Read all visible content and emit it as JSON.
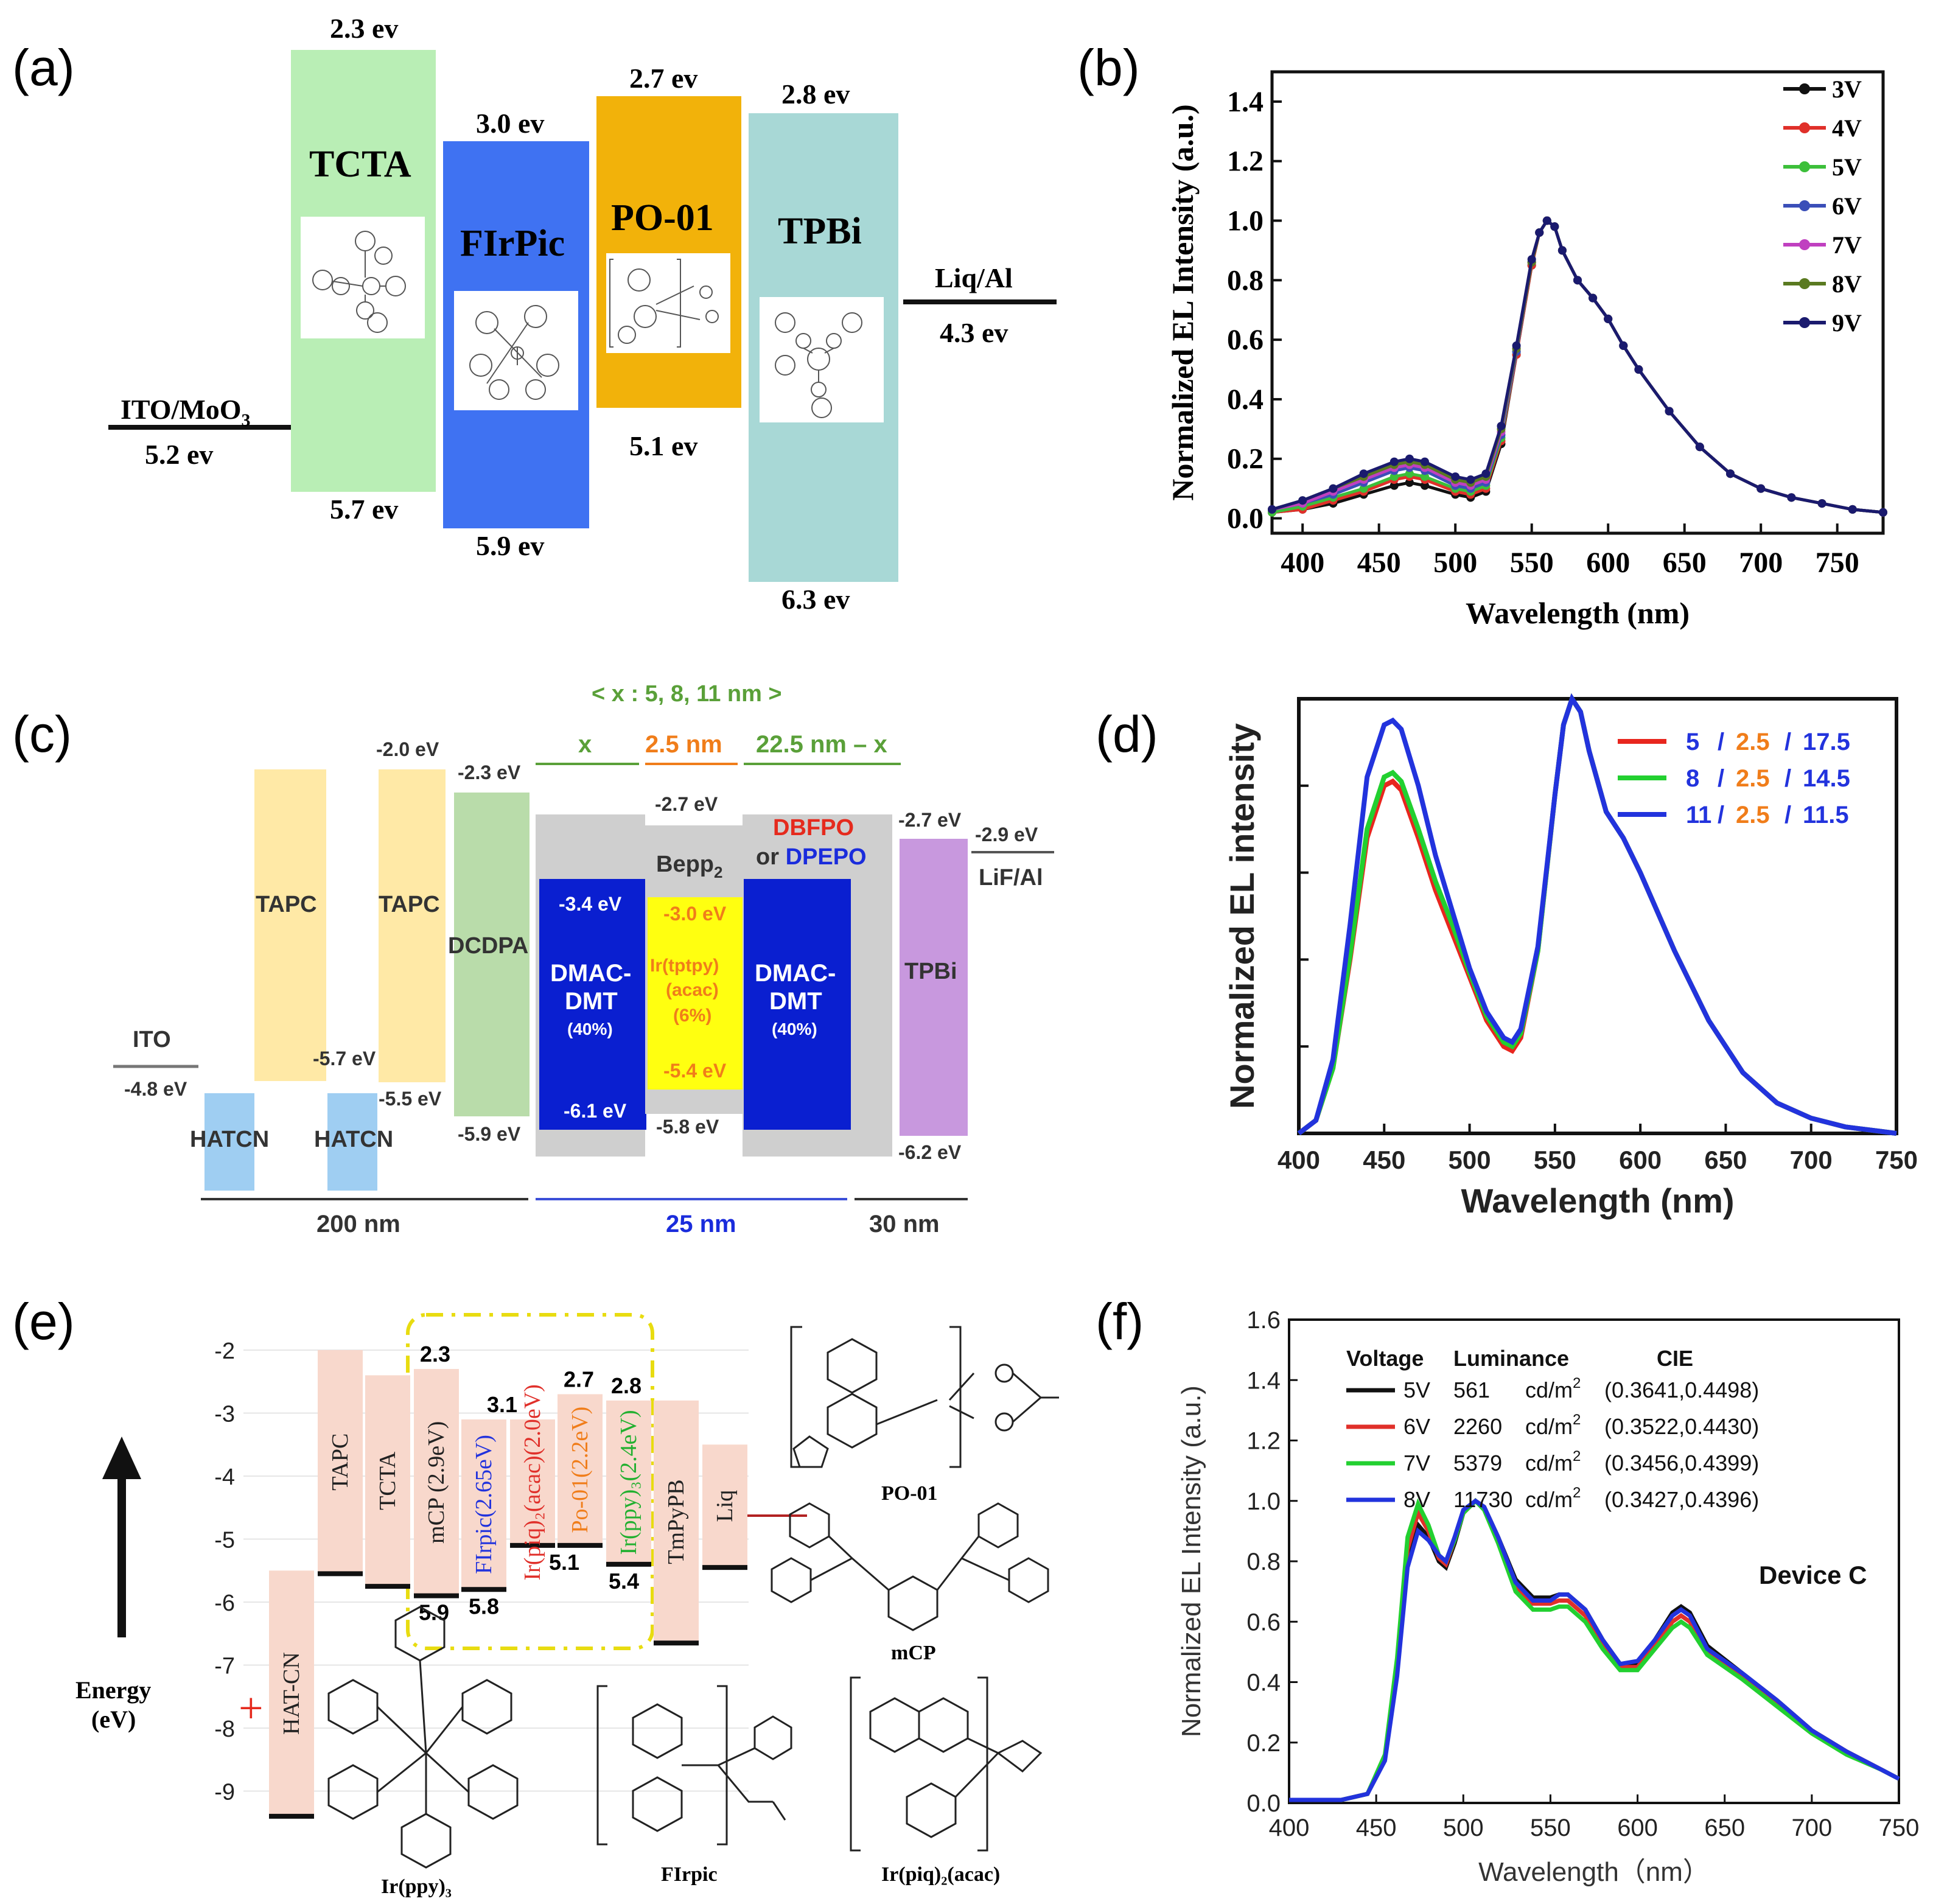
{
  "panels": {
    "a": "(a)",
    "b": "(b)",
    "c": "(c)",
    "d": "(d)",
    "e": "(e)",
    "f": "(f)"
  },
  "diagram_a": {
    "left_electrode": {
      "name": "ITO/MoO",
      "sub": "3",
      "level": "5.2 ev"
    },
    "right_electrode": {
      "name": "Liq/Al",
      "level": "4.3 ev"
    },
    "layers": [
      {
        "name": "TCTA",
        "lumo": "2.3 ev",
        "homo": "5.7 ev",
        "color": "#b9eeb5"
      },
      {
        "name": "FIrPic",
        "lumo": "3.0 ev",
        "homo": "5.9 ev",
        "color": "#3f72f2"
      },
      {
        "name": "PO-01",
        "lumo": "2.7 ev",
        "homo": "5.1 ev",
        "color": "#f2b20a"
      },
      {
        "name": "TPBi",
        "lumo": "2.8 ev",
        "homo": "6.3 ev",
        "color": "#a8d8d6"
      }
    ]
  },
  "diagram_c": {
    "top_note": "< x : 5, 8, 11 nm >",
    "seg_x": "x",
    "seg_25": "2.5 nm",
    "seg_225": "22.5 nm – x",
    "ito": "ITO",
    "ito_level": "-4.8 eV",
    "hatcn": "HATCN",
    "tapc": "TAPC",
    "tapc_level": "-2.0 eV",
    "tapc_homo": "-5.7 eV",
    "tapc2_homo": "-5.5 eV",
    "dcdpa": "DCDPA",
    "dcdpa_lumo": "-2.3 eV",
    "dcdpa_homo": "-5.9 eV",
    "dmac": [
      "DMAC-",
      "DMT",
      "(40%)"
    ],
    "dmac_lumo": "-3.4 eV",
    "dmac_homo": "-6.1 eV",
    "bepp": "Bepp",
    "bepp_sub": "2",
    "bepp_lumo": "-2.7 eV",
    "bepp_homo": "-5.8 eV",
    "ir": [
      "Ir(tptpy)",
      "(acac)",
      "(6%)"
    ],
    "ir_lumo": "-3.0 eV",
    "ir_homo": "-5.4 eV",
    "dbfpo": "DBFPO",
    "or_dpepo_or": "or ",
    "dpepo": "DPEPO",
    "tpbi": "TPBi",
    "tpbi_lumo": "-2.7 eV",
    "tpbi_homo": "-6.2 eV",
    "lif": "LiF/Al",
    "lif_level": "-2.9 eV",
    "thick_200": "200 nm",
    "thick_25": "25 nm",
    "thick_30": "30 nm"
  },
  "diagram_e": {
    "energy_label": [
      "Energy",
      "(eV)"
    ],
    "y_ticks": [
      "-2",
      "-3",
      "-4",
      "-5",
      "-6",
      "-7",
      "-8",
      "-9"
    ],
    "layers": [
      "HAT-CN",
      "TAPC",
      "TCTA",
      "mCP  (2.9eV)",
      "FIrpic(2.65eV)",
      "Ir(piq)₂(acac)(2.0eV)",
      "Po-01(2.2eV)",
      "Ir(ppy)₃(2.4eV)",
      "TmPyPB",
      "Liq"
    ],
    "levels": [
      "2.3",
      "3.1",
      "2.7",
      "2.8",
      "5.9",
      "5.8",
      "5.1",
      "5.4"
    ],
    "molecules": [
      "PO-01",
      "mCP",
      "Ir(ppy)₃",
      "FIrpic",
      "Ir(piq)₂(acac)"
    ]
  },
  "chart_data": [
    {
      "panel": "b",
      "type": "line",
      "title": "",
      "xlabel": "Wavelength (nm)",
      "ylabel": "Normalized EL Intensity (a.u.)",
      "xlim": [
        380,
        780
      ],
      "ylim": [
        -0.05,
        1.5
      ],
      "xticks": [
        400,
        450,
        500,
        550,
        600,
        650,
        700,
        750
      ],
      "yticks": [
        0.0,
        0.2,
        0.4,
        0.6,
        0.8,
        1.0,
        1.2,
        1.4
      ],
      "legend_position": "top-right",
      "x": [
        380,
        400,
        420,
        440,
        460,
        470,
        480,
        500,
        510,
        520,
        530,
        540,
        550,
        555,
        560,
        565,
        570,
        580,
        590,
        600,
        610,
        620,
        640,
        660,
        680,
        700,
        720,
        740,
        760,
        780
      ],
      "series": [
        {
          "name": "3V",
          "color": "#111111",
          "values": [
            0.02,
            0.03,
            0.05,
            0.08,
            0.11,
            0.12,
            0.11,
            0.08,
            0.07,
            0.09,
            0.25,
            0.55,
            0.85,
            0.96,
            1.0,
            0.98,
            0.9,
            0.8,
            0.74,
            0.67,
            0.58,
            0.5,
            0.36,
            0.24,
            0.15,
            0.1,
            0.07,
            0.05,
            0.03,
            0.02
          ]
        },
        {
          "name": "4V",
          "color": "#e0302a",
          "values": [
            0.02,
            0.03,
            0.06,
            0.09,
            0.13,
            0.14,
            0.13,
            0.09,
            0.08,
            0.1,
            0.26,
            0.55,
            0.85,
            0.96,
            1.0,
            0.98,
            0.9,
            0.8,
            0.74,
            0.67,
            0.58,
            0.5,
            0.36,
            0.24,
            0.15,
            0.1,
            0.07,
            0.05,
            0.03,
            0.02
          ]
        },
        {
          "name": "5V",
          "color": "#3cbf3a",
          "values": [
            0.02,
            0.04,
            0.07,
            0.1,
            0.14,
            0.15,
            0.14,
            0.1,
            0.09,
            0.11,
            0.27,
            0.56,
            0.86,
            0.96,
            1.0,
            0.98,
            0.9,
            0.8,
            0.74,
            0.67,
            0.58,
            0.5,
            0.36,
            0.24,
            0.15,
            0.1,
            0.07,
            0.05,
            0.03,
            0.02
          ]
        },
        {
          "name": "6V",
          "color": "#3b4fb8",
          "values": [
            0.03,
            0.05,
            0.08,
            0.12,
            0.16,
            0.17,
            0.16,
            0.11,
            0.1,
            0.12,
            0.28,
            0.56,
            0.86,
            0.96,
            1.0,
            0.98,
            0.9,
            0.8,
            0.74,
            0.67,
            0.58,
            0.5,
            0.36,
            0.24,
            0.15,
            0.1,
            0.07,
            0.05,
            0.03,
            0.02
          ]
        },
        {
          "name": "7V",
          "color": "#c040c0",
          "values": [
            0.03,
            0.05,
            0.09,
            0.13,
            0.17,
            0.18,
            0.17,
            0.12,
            0.11,
            0.13,
            0.29,
            0.57,
            0.86,
            0.96,
            1.0,
            0.98,
            0.9,
            0.8,
            0.74,
            0.67,
            0.58,
            0.5,
            0.36,
            0.24,
            0.15,
            0.1,
            0.07,
            0.05,
            0.03,
            0.02
          ]
        },
        {
          "name": "8V",
          "color": "#5a7a20",
          "values": [
            0.03,
            0.06,
            0.1,
            0.14,
            0.18,
            0.19,
            0.18,
            0.13,
            0.12,
            0.14,
            0.3,
            0.57,
            0.86,
            0.96,
            1.0,
            0.98,
            0.9,
            0.8,
            0.74,
            0.67,
            0.58,
            0.5,
            0.36,
            0.24,
            0.15,
            0.1,
            0.07,
            0.05,
            0.03,
            0.02
          ]
        },
        {
          "name": "9V",
          "color": "#1a1a6e",
          "values": [
            0.03,
            0.06,
            0.1,
            0.15,
            0.19,
            0.2,
            0.19,
            0.14,
            0.13,
            0.15,
            0.31,
            0.58,
            0.87,
            0.96,
            1.0,
            0.98,
            0.9,
            0.8,
            0.74,
            0.67,
            0.58,
            0.5,
            0.36,
            0.24,
            0.15,
            0.1,
            0.07,
            0.05,
            0.03,
            0.02
          ]
        }
      ]
    },
    {
      "panel": "d",
      "type": "line",
      "title": "",
      "xlabel": "Wavelength (nm)",
      "ylabel": "Normalized EL intensity",
      "xlim": [
        400,
        750
      ],
      "ylim": [
        0,
        1.0
      ],
      "xticks": [
        400,
        450,
        500,
        550,
        600,
        650,
        700,
        750
      ],
      "legend_position": "top-right",
      "x": [
        400,
        410,
        420,
        430,
        440,
        450,
        455,
        460,
        470,
        480,
        490,
        500,
        510,
        520,
        525,
        530,
        540,
        550,
        555,
        560,
        565,
        570,
        580,
        590,
        600,
        620,
        640,
        660,
        680,
        700,
        720,
        740,
        750
      ],
      "series": [
        {
          "name": "5 / 2.5 / 17.5",
          "parts": [
            "5",
            "/",
            "2.5",
            "/",
            "17.5"
          ],
          "color": "#e8261e",
          "values": [
            0.0,
            0.03,
            0.15,
            0.4,
            0.68,
            0.8,
            0.81,
            0.79,
            0.68,
            0.56,
            0.46,
            0.36,
            0.26,
            0.2,
            0.19,
            0.22,
            0.42,
            0.78,
            0.94,
            1.0,
            0.97,
            0.88,
            0.74,
            0.68,
            0.6,
            0.42,
            0.26,
            0.14,
            0.07,
            0.035,
            0.015,
            0.005,
            0.0
          ]
        },
        {
          "name": "8 / 2.5 / 14.5",
          "parts": [
            "8",
            "/",
            "2.5",
            "/",
            "14.5"
          ],
          "color": "#22d030",
          "values": [
            0.0,
            0.03,
            0.15,
            0.41,
            0.7,
            0.82,
            0.83,
            0.81,
            0.7,
            0.58,
            0.48,
            0.37,
            0.27,
            0.21,
            0.2,
            0.23,
            0.42,
            0.78,
            0.94,
            1.0,
            0.97,
            0.88,
            0.74,
            0.68,
            0.6,
            0.42,
            0.26,
            0.14,
            0.07,
            0.035,
            0.015,
            0.005,
            0.0
          ]
        },
        {
          "name": "11 / 2.5 / 11.5",
          "parts": [
            "11",
            "/",
            "2.5",
            "/",
            "11.5"
          ],
          "color": "#2233dd",
          "values": [
            0.0,
            0.03,
            0.17,
            0.48,
            0.82,
            0.94,
            0.95,
            0.93,
            0.8,
            0.64,
            0.51,
            0.38,
            0.28,
            0.22,
            0.21,
            0.24,
            0.43,
            0.78,
            0.94,
            1.0,
            0.97,
            0.88,
            0.74,
            0.68,
            0.6,
            0.42,
            0.26,
            0.14,
            0.07,
            0.035,
            0.015,
            0.005,
            0.0
          ]
        }
      ]
    },
    {
      "panel": "f",
      "type": "line",
      "title": "",
      "annotation": "Device C",
      "xlabel": "Wavelength（nm）",
      "ylabel": "Normalized EL Intensity (a.u.)",
      "xlim": [
        400,
        750
      ],
      "ylim": [
        0,
        1.6
      ],
      "xticks": [
        400,
        450,
        500,
        550,
        600,
        650,
        700,
        750
      ],
      "yticks": [
        0.0,
        0.2,
        0.4,
        0.6,
        0.8,
        1.0,
        1.2,
        1.4,
        1.6
      ],
      "legend_position": "top-left",
      "legend_headers": [
        "Voltage",
        "Luminance",
        "CIE"
      ],
      "luminance_unit": "cd/m",
      "luminance_unit_sup": "2",
      "x": [
        400,
        430,
        445,
        455,
        462,
        468,
        474,
        480,
        486,
        490,
        495,
        500,
        507,
        512,
        520,
        530,
        540,
        550,
        555,
        560,
        570,
        580,
        590,
        600,
        610,
        620,
        625,
        630,
        640,
        660,
        680,
        700,
        720,
        740,
        750
      ],
      "series": [
        {
          "name": "5V",
          "luminance": "561",
          "cie": "(0.3641,0.4498)",
          "color": "#111111",
          "values": [
            0.01,
            0.01,
            0.03,
            0.15,
            0.45,
            0.8,
            0.92,
            0.88,
            0.8,
            0.78,
            0.86,
            0.96,
            1.0,
            0.98,
            0.88,
            0.74,
            0.68,
            0.68,
            0.69,
            0.69,
            0.64,
            0.54,
            0.46,
            0.46,
            0.54,
            0.63,
            0.65,
            0.63,
            0.52,
            0.43,
            0.34,
            0.24,
            0.17,
            0.11,
            0.08
          ]
        },
        {
          "name": "6V",
          "luminance": "2260",
          "cie": "(0.3522,0.4430)",
          "color": "#e0302a",
          "values": [
            0.01,
            0.01,
            0.03,
            0.15,
            0.46,
            0.84,
            0.96,
            0.9,
            0.81,
            0.79,
            0.87,
            0.96,
            1.0,
            0.98,
            0.87,
            0.72,
            0.66,
            0.66,
            0.67,
            0.67,
            0.62,
            0.53,
            0.45,
            0.45,
            0.52,
            0.6,
            0.62,
            0.6,
            0.5,
            0.42,
            0.33,
            0.24,
            0.17,
            0.11,
            0.08
          ]
        },
        {
          "name": "7V",
          "luminance": "5379",
          "cie": "(0.3456,0.4399)",
          "color": "#22d030",
          "values": [
            0.01,
            0.01,
            0.03,
            0.16,
            0.48,
            0.88,
            0.99,
            0.92,
            0.82,
            0.8,
            0.87,
            0.96,
            1.0,
            0.97,
            0.86,
            0.7,
            0.64,
            0.64,
            0.65,
            0.65,
            0.6,
            0.51,
            0.44,
            0.44,
            0.51,
            0.58,
            0.6,
            0.58,
            0.49,
            0.41,
            0.32,
            0.23,
            0.16,
            0.11,
            0.08
          ]
        },
        {
          "name": "8V",
          "luminance": "11730",
          "cie": "(0.3427,0.4396)",
          "color": "#2233dd",
          "values": [
            0.01,
            0.01,
            0.03,
            0.14,
            0.42,
            0.78,
            0.9,
            0.87,
            0.82,
            0.8,
            0.88,
            0.97,
            1.0,
            0.98,
            0.88,
            0.73,
            0.67,
            0.67,
            0.69,
            0.69,
            0.64,
            0.54,
            0.46,
            0.47,
            0.54,
            0.62,
            0.64,
            0.62,
            0.51,
            0.43,
            0.34,
            0.24,
            0.17,
            0.11,
            0.08
          ]
        }
      ]
    }
  ]
}
